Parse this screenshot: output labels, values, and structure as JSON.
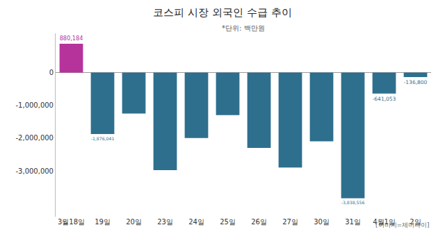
{
  "chart_data": {
    "type": "bar",
    "title": "코스피 시장 외국인 수급 추이",
    "subtitle": "*단위: 백만원",
    "categories": [
      "3월18일",
      "19일",
      "20일",
      "23일",
      "24일",
      "25일",
      "26일",
      "27일",
      "30일",
      "31일",
      "4월1일",
      "2일"
    ],
    "values": [
      880184,
      -1876041,
      -1250000,
      -2980000,
      -2000000,
      -1300000,
      -2300000,
      -2900000,
      -2100000,
      -3838556,
      -641053,
      -136800
    ],
    "value_labels": [
      "880,184",
      "-1,876,041",
      null,
      null,
      null,
      null,
      null,
      null,
      null,
      "-3,838,556",
      "-641,053",
      "-136,800"
    ],
    "data_labels": true,
    "colors": [
      "#b5339b",
      "#2e6f8e",
      "#2e6f8e",
      "#2e6f8e",
      "#2e6f8e",
      "#2e6f8e",
      "#2e6f8e",
      "#2e6f8e",
      "#2e6f8e",
      "#2e6f8e",
      "#2e6f8e",
      "#2e6f8e"
    ],
    "ylim": [
      -4400000,
      1200000
    ],
    "yticks": [
      {
        "value": -3000000,
        "label": "-3,000,000"
      },
      {
        "value": -2000000,
        "label": "-2,000,000"
      },
      {
        "value": -1000000,
        "label": "-1,000,000"
      },
      0
    ],
    "grid": false,
    "annotations": [
      "[이미지=제미나이]"
    ]
  }
}
